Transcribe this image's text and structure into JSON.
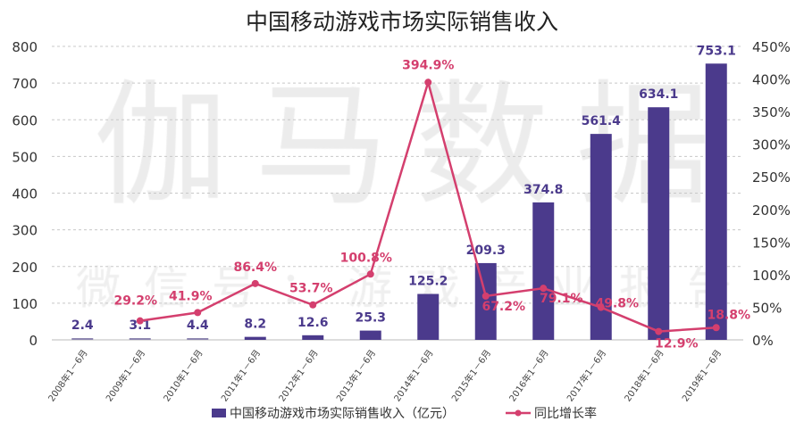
{
  "chart_data": {
    "type": "bar+line",
    "title": "中国移动游戏市场实际销售收入",
    "categories": [
      "2008年1－6月",
      "2009年1－6月",
      "2010年1－6月",
      "2011年1－6月",
      "2012年1－6月",
      "2013年1－6月",
      "2014年1－6月",
      "2015年1－6月",
      "2016年1－6月",
      "2017年1－6月",
      "2018年1－6月",
      "2019年1－6月"
    ],
    "series": [
      {
        "name": "中国移动游戏市场实际销售收入（亿元）",
        "type": "bar",
        "axis": "left",
        "color": "#4b3a8c",
        "values": [
          2.4,
          3.1,
          4.4,
          8.2,
          12.6,
          25.3,
          125.2,
          209.3,
          374.8,
          561.4,
          634.1,
          753.1
        ],
        "labels": [
          "2.4",
          "3.1",
          "4.4",
          "8.2",
          "12.6",
          "25.3",
          "125.2",
          "209.3",
          "374.8",
          "561.4",
          "634.1",
          "753.1"
        ]
      },
      {
        "name": "同比增长率",
        "type": "line",
        "axis": "right",
        "color": "#d43f6e",
        "values": [
          null,
          29.2,
          41.9,
          86.4,
          53.7,
          100.8,
          394.9,
          67.2,
          79.1,
          49.8,
          12.9,
          18.8
        ],
        "labels": [
          null,
          "29.2%",
          "41.9%",
          "86.4%",
          "53.7%",
          "100.8%",
          "394.9%",
          "67.2%",
          "79.1%",
          "49.8%",
          "12.9%",
          "18.8%"
        ]
      }
    ],
    "y_left": {
      "lim": [
        0,
        800
      ],
      "ticks": [
        "0",
        "100",
        "200",
        "300",
        "400",
        "500",
        "600",
        "700",
        "800"
      ]
    },
    "y_right": {
      "lim": [
        0,
        450
      ],
      "ticks": [
        "0%",
        "50%",
        "100%",
        "150%",
        "200%",
        "250%",
        "300%",
        "350%",
        "400%",
        "450%"
      ]
    },
    "grid": true,
    "legend_position": "bottom"
  },
  "watermark": {
    "main": "伽马数据",
    "sub": "微信号：游戏产业报告"
  }
}
